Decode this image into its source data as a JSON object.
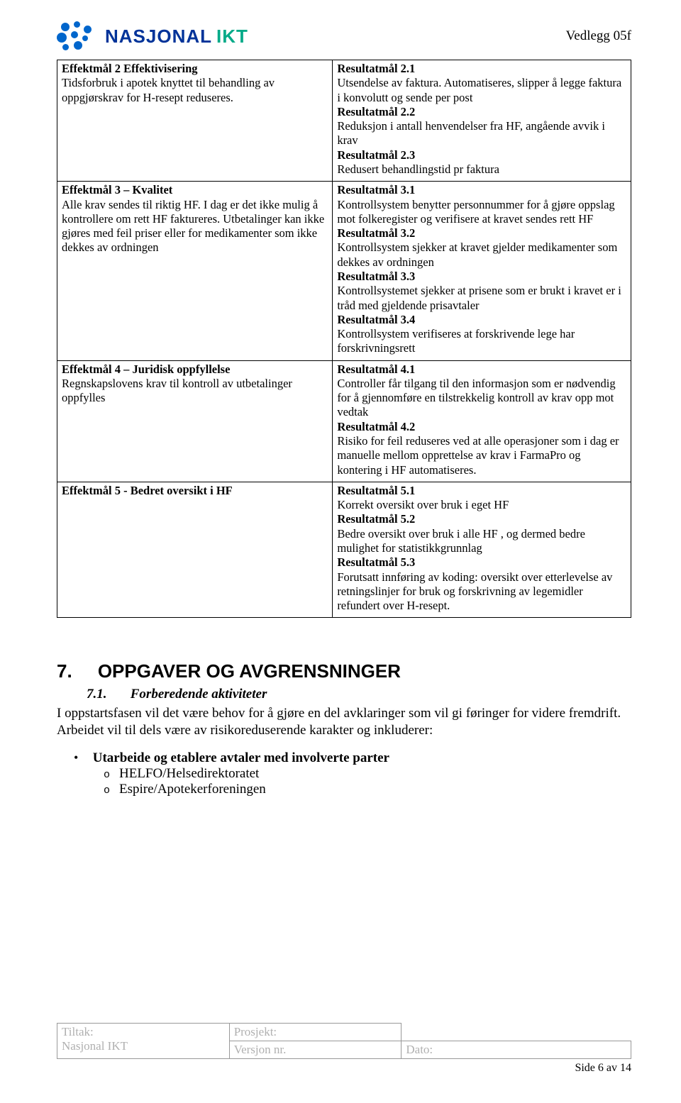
{
  "header": {
    "logo_word1": "NASJONAL",
    "logo_word2": "IKT",
    "vedlegg": "Vedlegg 05f",
    "logo_colors": {
      "dots": "#0066cc",
      "word1": "#003399",
      "word2": "#00aa88"
    }
  },
  "table": {
    "rows": [
      {
        "left": {
          "title": "Effektmål 2 Effektivisering",
          "body": "Tidsforbruk i apotek knyttet til behandling av oppgjørskrav for H-resept reduseres."
        },
        "right": [
          {
            "title": "Resultatmål 2.1",
            "body": "Utsendelse av faktura. Automatiseres, slipper å legge faktura i konvolutt og sende per post"
          },
          {
            "title": "Resultatmål 2.2",
            "body": "Reduksjon i antall henvendelser fra HF, angående avvik i krav"
          },
          {
            "title": "Resultatmål 2.3",
            "body": "Redusert behandlingstid pr faktura"
          }
        ]
      },
      {
        "left": {
          "title": "Effektmål 3 – Kvalitet",
          "body": "Alle krav sendes til riktig HF. I dag er det ikke mulig å kontrollere om rett HF faktureres. Utbetalinger kan ikke gjøres med feil priser eller for medikamenter som ikke dekkes av ordningen"
        },
        "right": [
          {
            "title": "Resultatmål 3.1",
            "body": "Kontrollsystem benytter personnummer for å gjøre oppslag mot folkeregister og verifisere at kravet sendes rett HF"
          },
          {
            "title": "Resultatmål 3.2",
            "body": "Kontrollsystem sjekker at kravet gjelder medikamenter som dekkes av ordningen"
          },
          {
            "title": "Resultatmål 3.3",
            "body": "Kontrollsystemet sjekker at prisene som er brukt i kravet er i tråd med gjeldende prisavtaler"
          },
          {
            "title": "Resultatmål 3.4",
            "body": "Kontrollsystem verifiseres at forskrivende lege har forskrivningsrett"
          }
        ]
      },
      {
        "left": {
          "title": "Effektmål 4 – Juridisk oppfyllelse",
          "body": "Regnskapslovens krav til kontroll av utbetalinger oppfylles"
        },
        "right": [
          {
            "title": "Resultatmål 4.1",
            "body": "Controller får tilgang til den informasjon som er nødvendig for å gjennomføre en tilstrekkelig kontroll av krav opp mot vedtak"
          },
          {
            "title": "Resultatmål 4.2",
            "body": "Risiko for feil reduseres ved at alle operasjoner som i dag er manuelle mellom opprettelse av krav i FarmaPro og kontering i HF automatiseres."
          }
        ]
      },
      {
        "left": {
          "title": "Effektmål 5 - Bedret oversikt i HF",
          "body": ""
        },
        "right": [
          {
            "title": "Resultatmål 5.1",
            "body": "Korrekt oversikt over bruk i eget HF"
          },
          {
            "title": "Resultatmål 5.2",
            "body": "Bedre oversikt over bruk i alle HF , og dermed bedre mulighet for statistikkgrunnlag"
          },
          {
            "title": "Resultatmål 5.3",
            "body": "Forutsatt innføring av koding: oversikt over etterlevelse av retningslinjer for bruk og forskrivning av legemidler refundert over H-resept."
          }
        ]
      }
    ]
  },
  "section": {
    "number": "7.",
    "title": "OPPGAVER OG AVGRENSNINGER",
    "sub_number": "7.1.",
    "sub_title": "Forberedende aktiviteter",
    "body": "I oppstartsfasen vil det være behov for å gjøre en del avklaringer som vil gi føringer for videre fremdrift. Arbeidet vil til dels være av risikoreduserende karakter og inkluderer:",
    "bullet": "Utarbeide og etablere avtaler med involverte parter",
    "sub_items": [
      "HELFO/Helsedirektoratet",
      "Espire/Apotekerforeningen"
    ]
  },
  "footer": {
    "tiltak_label": "Tiltak:",
    "nasjonal": "Nasjonal IKT",
    "prosjekt_label": "Prosjekt:",
    "versjon_label": "Versjon nr.",
    "dato_label": "Dato:",
    "page": "Side 6 av 14"
  }
}
